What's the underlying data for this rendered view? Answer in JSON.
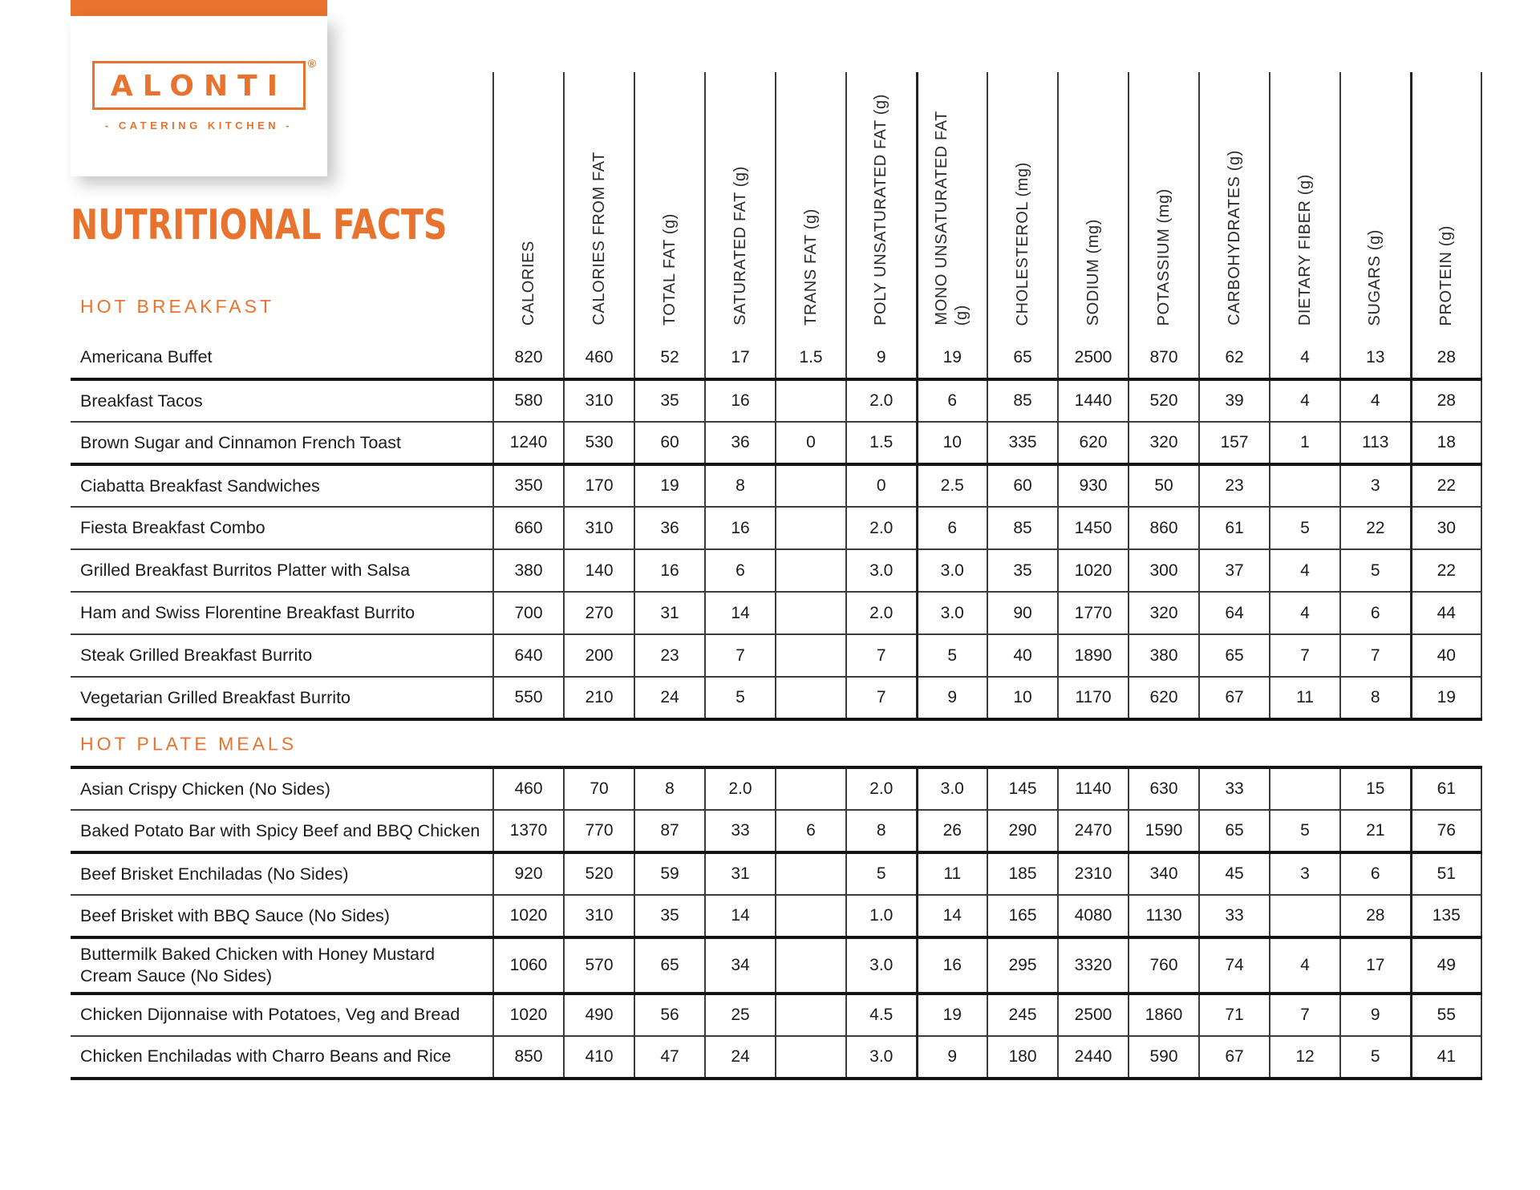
{
  "brand": {
    "name": "ALONTI",
    "registered": "®",
    "tagline": "- CATERING KITCHEN -",
    "accent_color": "#e8732f"
  },
  "page_title": "NUTRITIONAL FACTS",
  "columns": [
    {
      "label": "CALORIES"
    },
    {
      "label": "CALORIES FROM FAT"
    },
    {
      "label": "TOTAL FAT (g)"
    },
    {
      "label": "SATURATED FAT (g)"
    },
    {
      "label": "TRANS FAT (g)"
    },
    {
      "label": "POLY UNSATURATED FAT (g)"
    },
    {
      "label": "MONO UNSATURATED FAT",
      "label2": "(g)"
    },
    {
      "label": "CHOLESTEROL (mg)"
    },
    {
      "label": "SODIUM (mg)"
    },
    {
      "label": "POTASSIUM (mg)"
    },
    {
      "label": "CARBOHYDRATES (g)"
    },
    {
      "label": "DIETARY FIBER (g)"
    },
    {
      "label": "SUGARS (g)"
    },
    {
      "label": "PROTEIN (g)"
    }
  ],
  "sections": [
    {
      "title": "HOT BREAKFAST",
      "rows": [
        {
          "name": "Americana Buffet",
          "thick": true,
          "values": [
            "820",
            "460",
            "52",
            "17",
            "1.5",
            "9",
            "19",
            "65",
            "2500",
            "870",
            "62",
            "4",
            "13",
            "28"
          ]
        },
        {
          "name": "Breakfast Tacos",
          "thick": false,
          "values": [
            "580",
            "310",
            "35",
            "16",
            "",
            "2.0",
            "6",
            "85",
            "1440",
            "520",
            "39",
            "4",
            "4",
            "28"
          ]
        },
        {
          "name": "Brown Sugar and Cinnamon French Toast",
          "thick": true,
          "values": [
            "1240",
            "530",
            "60",
            "36",
            "0",
            "1.5",
            "10",
            "335",
            "620",
            "320",
            "157",
            "1",
            "113",
            "18"
          ]
        },
        {
          "name": "Ciabatta Breakfast Sandwiches",
          "thick": false,
          "values": [
            "350",
            "170",
            "19",
            "8",
            "",
            "0",
            "2.5",
            "60",
            "930",
            "50",
            "23",
            "",
            "3",
            "22"
          ]
        },
        {
          "name": "Fiesta Breakfast Combo",
          "thick": false,
          "values": [
            "660",
            "310",
            "36",
            "16",
            "",
            "2.0",
            "6",
            "85",
            "1450",
            "860",
            "61",
            "5",
            "22",
            "30"
          ]
        },
        {
          "name": "Grilled Breakfast Burritos Platter with Salsa",
          "thick": false,
          "values": [
            "380",
            "140",
            "16",
            "6",
            "",
            "3.0",
            "3.0",
            "35",
            "1020",
            "300",
            "37",
            "4",
            "5",
            "22"
          ]
        },
        {
          "name": "Ham and Swiss Florentine Breakfast Burrito",
          "thick": false,
          "values": [
            "700",
            "270",
            "31",
            "14",
            "",
            "2.0",
            "3.0",
            "90",
            "1770",
            "320",
            "64",
            "4",
            "6",
            "44"
          ]
        },
        {
          "name": "Steak Grilled Breakfast Burrito",
          "thick": false,
          "values": [
            "640",
            "200",
            "23",
            "7",
            "",
            "7",
            "5",
            "40",
            "1890",
            "380",
            "65",
            "7",
            "7",
            "40"
          ]
        },
        {
          "name": "Vegetarian Grilled Breakfast Burrito",
          "thick": true,
          "values": [
            "550",
            "210",
            "24",
            "5",
            "",
            "7",
            "9",
            "10",
            "1170",
            "620",
            "67",
            "11",
            "8",
            "19"
          ]
        }
      ]
    },
    {
      "title": "HOT PLATE MEALS",
      "rows": [
        {
          "name": "Asian Crispy Chicken (No Sides)",
          "thick": false,
          "values": [
            "460",
            "70",
            "8",
            "2.0",
            "",
            "2.0",
            "3.0",
            "145",
            "1140",
            "630",
            "33",
            "",
            "15",
            "61"
          ]
        },
        {
          "name": "Baked Potato Bar with Spicy Beef and BBQ Chicken",
          "thick": true,
          "values": [
            "1370",
            "770",
            "87",
            "33",
            "6",
            "8",
            "26",
            "290",
            "2470",
            "1590",
            "65",
            "5",
            "21",
            "76"
          ]
        },
        {
          "name": "Beef Brisket Enchiladas (No Sides)",
          "thick": false,
          "values": [
            "920",
            "520",
            "59",
            "31",
            "",
            "5",
            "11",
            "185",
            "2310",
            "340",
            "45",
            "3",
            "6",
            "51"
          ]
        },
        {
          "name": "Beef Brisket with BBQ Sauce (No Sides)",
          "thick": true,
          "values": [
            "1020",
            "310",
            "35",
            "14",
            "",
            "1.0",
            "14",
            "165",
            "4080",
            "1130",
            "33",
            "",
            "28",
            "135"
          ]
        },
        {
          "name": "Buttermilk Baked Chicken with Honey Mustard Cream Sauce (No Sides)",
          "thick": true,
          "values": [
            "1060",
            "570",
            "65",
            "34",
            "",
            "3.0",
            "16",
            "295",
            "3320",
            "760",
            "74",
            "4",
            "17",
            "49"
          ]
        },
        {
          "name": "Chicken Dijonnaise with Potatoes, Veg and Bread",
          "thick": false,
          "values": [
            "1020",
            "490",
            "56",
            "25",
            "",
            "4.5",
            "19",
            "245",
            "2500",
            "1860",
            "71",
            "7",
            "9",
            "55"
          ]
        },
        {
          "name": "Chicken Enchiladas with Charro Beans and Rice",
          "thick": true,
          "values": [
            "850",
            "410",
            "47",
            "24",
            "",
            "3.0",
            "9",
            "180",
            "2440",
            "590",
            "67",
            "12",
            "5",
            "41"
          ]
        }
      ]
    }
  ]
}
